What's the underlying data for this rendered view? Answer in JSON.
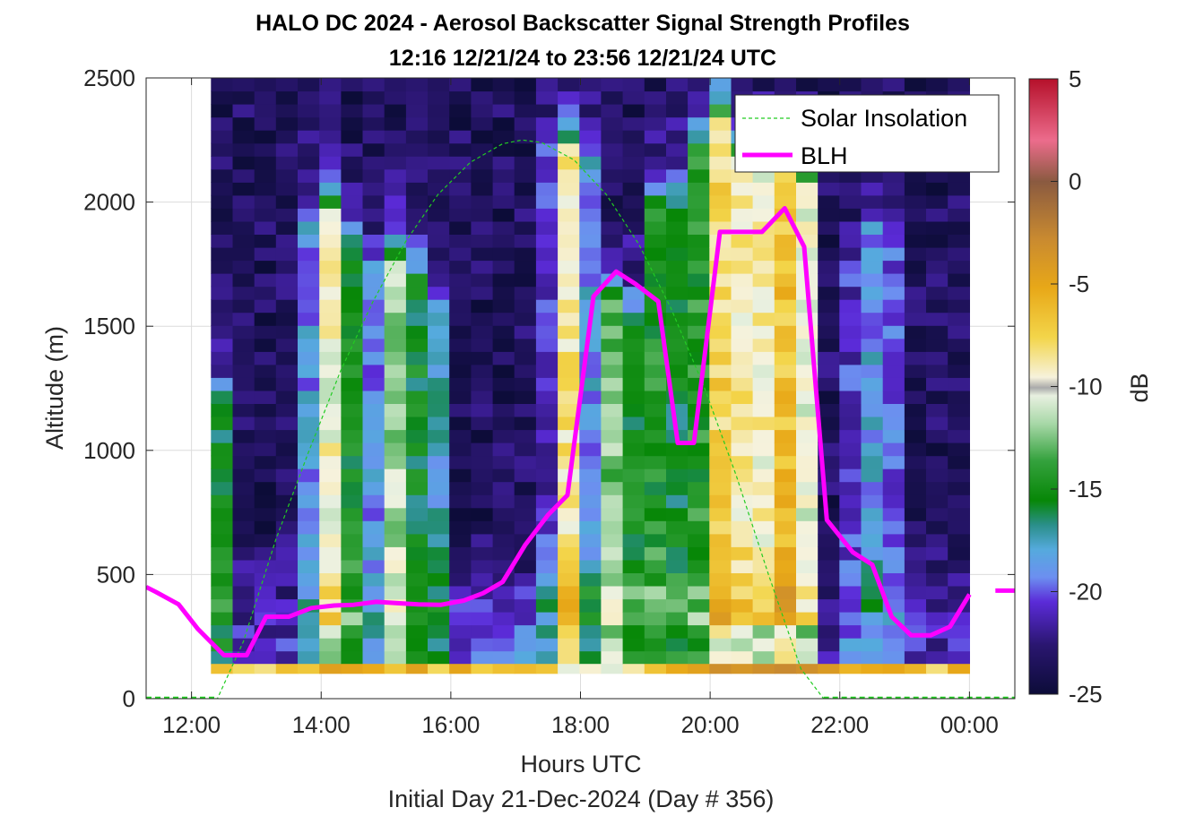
{
  "chart_data": {
    "type": "heatmap",
    "title": "HALO DC 2024 - Aerosol Backscatter Signal Strength Profiles",
    "subtitle": "12:16 12/21/24 to 23:56 12/21/24  UTC",
    "xlabel": "Hours UTC",
    "xsublabel": "Initial Day 21-Dec-2024 (Day # 356)",
    "ylabel": "Altitude (m)",
    "colorbar_label": "dB",
    "x_range_hours": [
      11.3,
      24.7
    ],
    "x_ticks": [
      {
        "value": 12,
        "label": "12:00"
      },
      {
        "value": 14,
        "label": "14:00"
      },
      {
        "value": 16,
        "label": "16:00"
      },
      {
        "value": 18,
        "label": "18:00"
      },
      {
        "value": 20,
        "label": "20:00"
      },
      {
        "value": 22,
        "label": "22:00"
      },
      {
        "value": 24,
        "label": "00:00"
      }
    ],
    "ylim": [
      0,
      2500
    ],
    "y_ticks": [
      0,
      500,
      1000,
      1500,
      2000,
      2500
    ],
    "colorbar_range": [
      -25,
      5
    ],
    "colorbar_ticks": [
      5,
      0,
      -5,
      -10,
      -15,
      -20,
      -25
    ],
    "legend_position": "top-right",
    "grid": true,
    "series": [
      {
        "name": "Solar Insolation",
        "style": "dashed",
        "color": "#22cc22",
        "x": [
          11.3,
          12.4,
          12.8,
          13.3,
          13.8,
          14.3,
          14.8,
          15.3,
          15.8,
          16.3,
          16.8,
          17.1,
          17.4,
          17.9,
          18.4,
          18.9,
          19.4,
          19.9,
          20.4,
          20.9,
          21.4,
          21.75,
          22.2,
          23.0,
          24.7
        ],
        "y": [
          0,
          0,
          230,
          640,
          990,
          1320,
          1600,
          1840,
          2030,
          2160,
          2235,
          2250,
          2240,
          2170,
          2030,
          1830,
          1570,
          1260,
          900,
          500,
          120,
          0,
          0,
          0,
          0
        ]
      },
      {
        "name": "BLH",
        "style": "solid",
        "color": "#ff00ff",
        "x": [
          11.3,
          11.45,
          11.8,
          12.1,
          12.5,
          12.85,
          13.15,
          13.5,
          13.85,
          14.2,
          14.5,
          14.85,
          15.15,
          15.5,
          15.85,
          16.2,
          16.5,
          16.8,
          17.15,
          17.5,
          17.8,
          18.2,
          18.55,
          18.85,
          19.2,
          19.5,
          19.75,
          20.15,
          20.5,
          20.8,
          21.15,
          21.45,
          21.8,
          22.2,
          22.5,
          22.8,
          23.1,
          23.4,
          23.7,
          24.0
        ],
        "y": [
          450,
          430,
          380,
          280,
          175,
          175,
          330,
          330,
          365,
          375,
          378,
          390,
          385,
          380,
          378,
          395,
          425,
          470,
          620,
          740,
          820,
          1620,
          1720,
          1670,
          1600,
          1030,
          1030,
          1880,
          1880,
          1880,
          1975,
          1820,
          720,
          590,
          540,
          330,
          255,
          255,
          290,
          420
        ]
      },
      {
        "name": "BLH-end",
        "style": "solid",
        "color": "#ff00ff",
        "x": [
          24.4,
          24.7
        ],
        "y": [
          435,
          435
        ]
      }
    ],
    "heatmap": {
      "x_start_hours": 12.3,
      "x_end_hours": 24.0,
      "time_bins": 35,
      "altitude_bins": 45,
      "altitude_min": 140,
      "altitude_max": 2500,
      "surface_band_altitudes": [
        140,
        100
      ],
      "description_units": "dB"
    }
  }
}
